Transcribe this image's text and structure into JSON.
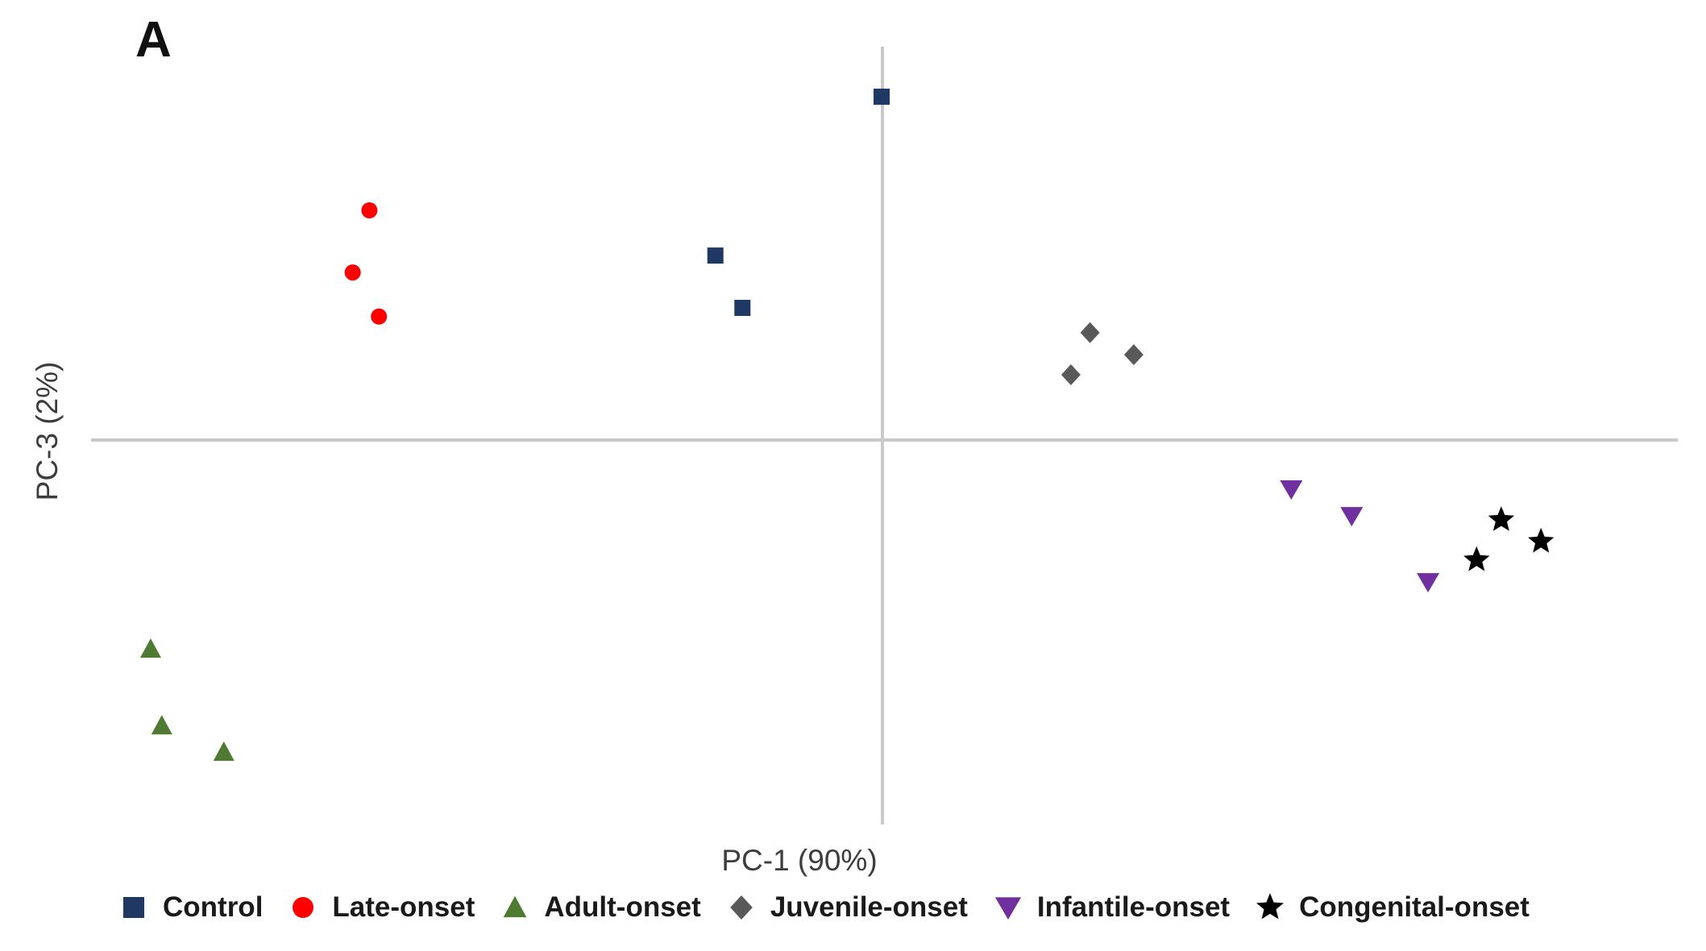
{
  "panel_label": "A",
  "colors": {
    "control": "#1F3864",
    "late_onset": "#FE0000",
    "adult_onset": "#4E7B31",
    "juvenile_onset": "#595959",
    "infantile_onset": "#7030A0",
    "congenital_onset": "#000000",
    "axis_line": "#C9C9C9"
  },
  "chart_data": {
    "type": "scatter",
    "title": "",
    "xlabel": "PC-1 (90%)",
    "ylabel": "PC-3 (2%)",
    "xlim": [
      -1,
      1
    ],
    "ylim": [
      -1,
      1
    ],
    "grid": false,
    "axes_style": "centered-crosshair-no-ticks",
    "legend_position": "bottom",
    "series": [
      {
        "name": "Control",
        "marker": "square",
        "color": "#1F3864",
        "points": [
          [
            -0.001,
            0.873
          ],
          [
            -0.21,
            0.469
          ],
          [
            -0.176,
            0.336
          ]
        ]
      },
      {
        "name": "Late-onset",
        "marker": "circle",
        "color": "#FE0000",
        "points": [
          [
            -0.645,
            0.584
          ],
          [
            -0.666,
            0.426
          ],
          [
            -0.633,
            0.314
          ]
        ]
      },
      {
        "name": "Adult-onset",
        "marker": "triangle-up",
        "color": "#4E7B31",
        "points": [
          [
            -0.92,
            -0.531
          ],
          [
            -0.906,
            -0.726
          ],
          [
            -0.828,
            -0.793
          ]
        ]
      },
      {
        "name": "Juvenile-onset",
        "marker": "diamond",
        "color": "#595959",
        "points": [
          [
            0.261,
            0.273
          ],
          [
            0.316,
            0.217
          ],
          [
            0.237,
            0.166
          ]
        ]
      },
      {
        "name": "Infantile-onset",
        "marker": "triangle-down",
        "color": "#7030A0",
        "points": [
          [
            0.514,
            -0.125
          ],
          [
            0.59,
            -0.193
          ],
          [
            0.686,
            -0.361
          ]
        ]
      },
      {
        "name": "Congenital-onset",
        "marker": "star",
        "color": "#000000",
        "points": [
          [
            0.778,
            -0.203
          ],
          [
            0.828,
            -0.258
          ],
          [
            0.747,
            -0.305
          ]
        ]
      }
    ]
  }
}
